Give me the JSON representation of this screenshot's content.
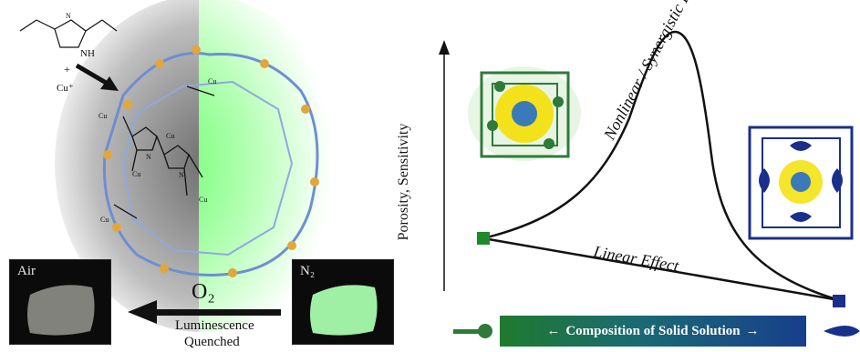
{
  "left_panel": {
    "chem_labels": {
      "nh": "NH",
      "n": "N",
      "plus": "+",
      "cu_ion": "Cu⁺"
    },
    "framework_labels": [
      "Cu",
      "Cu",
      "Cu",
      "Cu",
      "Cu",
      "Cu",
      "N",
      "N"
    ],
    "photo_air_label": "Air",
    "photo_n2_label": "N₂",
    "o2_label": "O₂",
    "arrow_caption_line1": "Luminescence",
    "arrow_caption_line2": "Quenched"
  },
  "right_panel": {
    "y_axis_label": "Porosity, Sensitivity",
    "curve_label_nonlinear": "Nonlinear / Synergistic Effect",
    "line_label_linear": "Linear Effect",
    "composition_bar_label": "Composition of Solid Solution"
  },
  "colors": {
    "green_marker": "#1f8a2a",
    "blue_marker": "#1a2f8a",
    "glow_green": "#7dff7d",
    "framework_blue": "#6d8fd1",
    "framework_orange": "#e3a63a"
  }
}
